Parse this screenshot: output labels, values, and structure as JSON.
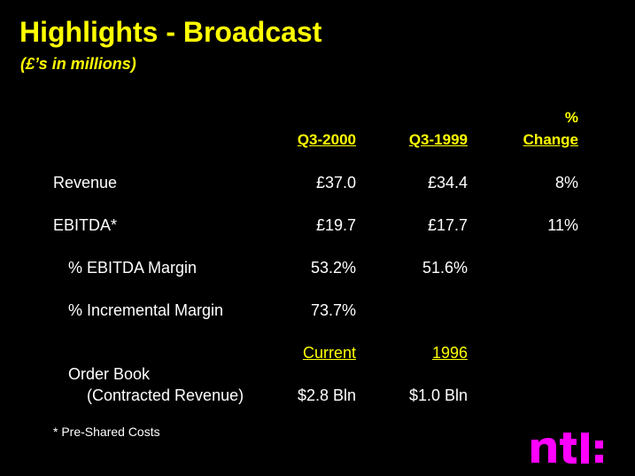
{
  "title": "Highlights - Broadcast",
  "subtitle": "(£’s in millions)",
  "columns": {
    "q3_2000": "Q3-2000",
    "q3_1999": "Q3-1999",
    "pct_top": "%",
    "pct_bottom": "Change"
  },
  "rows": [
    {
      "label": "Revenue",
      "q3_2000": "£37.0",
      "q3_1999": "£34.4",
      "change": "8%"
    },
    {
      "label": "EBITDA*",
      "q3_2000": "£19.7",
      "q3_1999": "£17.7",
      "change": "11%"
    },
    {
      "label": "% EBITDA Margin",
      "q3_2000": "53.2%",
      "q3_1999": "51.6%",
      "change": ""
    },
    {
      "label": "% Incremental Margin",
      "q3_2000": "73.7%",
      "q3_1999": "",
      "change": ""
    }
  ],
  "order_book": {
    "col_current": "Current",
    "col_1996": "1996",
    "label_line1": "Order Book",
    "label_line2": "(Contracted Revenue)",
    "current": "$2.8 Bln",
    "y1996": "$1.0 Bln"
  },
  "footnote": "* Pre-Shared Costs",
  "logo": {
    "text": "ntl:",
    "color": "#ff00ff"
  },
  "colors": {
    "background": "#000000",
    "accent": "#ffff00",
    "text": "#ffffff"
  }
}
